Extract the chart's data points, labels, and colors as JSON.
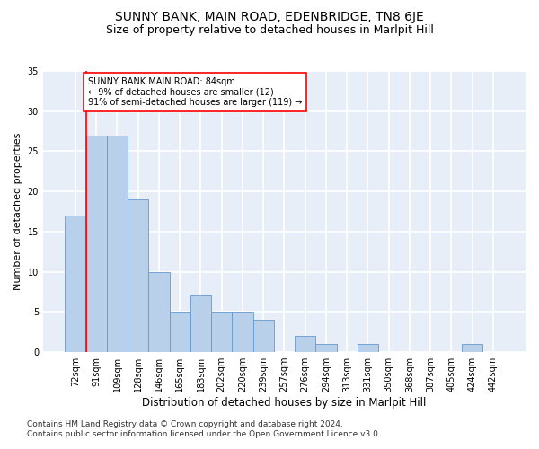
{
  "title": "SUNNY BANK, MAIN ROAD, EDENBRIDGE, TN8 6JE",
  "subtitle": "Size of property relative to detached houses in Marlpit Hill",
  "xlabel": "Distribution of detached houses by size in Marlpit Hill",
  "ylabel": "Number of detached properties",
  "categories": [
    "72sqm",
    "91sqm",
    "109sqm",
    "128sqm",
    "146sqm",
    "165sqm",
    "183sqm",
    "202sqm",
    "220sqm",
    "239sqm",
    "257sqm",
    "276sqm",
    "294sqm",
    "313sqm",
    "331sqm",
    "350sqm",
    "368sqm",
    "387sqm",
    "405sqm",
    "424sqm",
    "442sqm"
  ],
  "values": [
    17,
    27,
    27,
    19,
    10,
    5,
    7,
    5,
    5,
    4,
    0,
    2,
    1,
    0,
    1,
    0,
    0,
    0,
    0,
    1,
    0
  ],
  "bar_color": "#b8d0ea",
  "bar_edge_color": "#6699cc",
  "annotation_box_text": "SUNNY BANK MAIN ROAD: 84sqm\n← 9% of detached houses are smaller (12)\n91% of semi-detached houses are larger (119) →",
  "annotation_box_color": "white",
  "annotation_box_edge_color": "red",
  "vline_color": "red",
  "ylim": [
    0,
    35
  ],
  "yticks": [
    0,
    5,
    10,
    15,
    20,
    25,
    30,
    35
  ],
  "footer": "Contains HM Land Registry data © Crown copyright and database right 2024.\nContains public sector information licensed under the Open Government Licence v3.0.",
  "background_color": "#e8eef8",
  "grid_color": "white",
  "title_fontsize": 10,
  "subtitle_fontsize": 9,
  "ylabel_fontsize": 8,
  "xlabel_fontsize": 8.5,
  "tick_fontsize": 7,
  "footer_fontsize": 6.5
}
